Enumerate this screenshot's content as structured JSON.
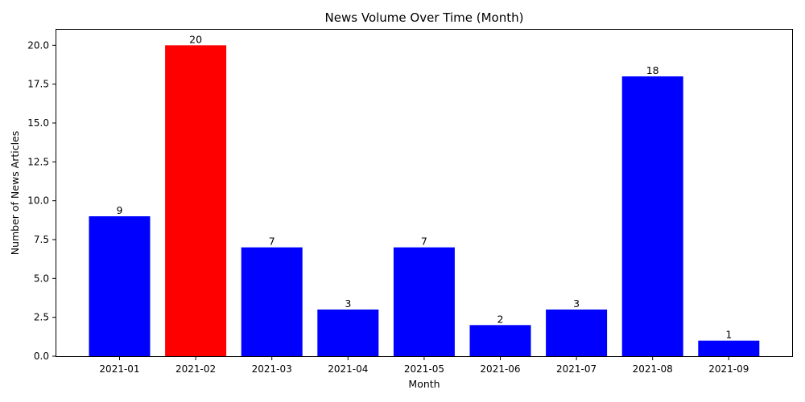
{
  "chart_data": {
    "type": "bar",
    "title": "News Volume Over Time (Month)",
    "xlabel": "Month",
    "ylabel": "Number of News Articles",
    "categories": [
      "2021-01",
      "2021-02",
      "2021-03",
      "2021-04",
      "2021-05",
      "2021-06",
      "2021-07",
      "2021-08",
      "2021-09"
    ],
    "values": [
      9,
      20,
      7,
      3,
      7,
      2,
      3,
      18,
      1
    ],
    "bar_colors": [
      "#0000ff",
      "#ff0000",
      "#0000ff",
      "#0000ff",
      "#0000ff",
      "#0000ff",
      "#0000ff",
      "#0000ff",
      "#0000ff"
    ],
    "ylim": [
      0,
      21
    ],
    "yticks": [
      "0.0",
      "2.5",
      "5.0",
      "7.5",
      "10.0",
      "12.5",
      "15.0",
      "17.5",
      "20.0"
    ],
    "grid": false,
    "legend": "none",
    "data_labels": true
  }
}
